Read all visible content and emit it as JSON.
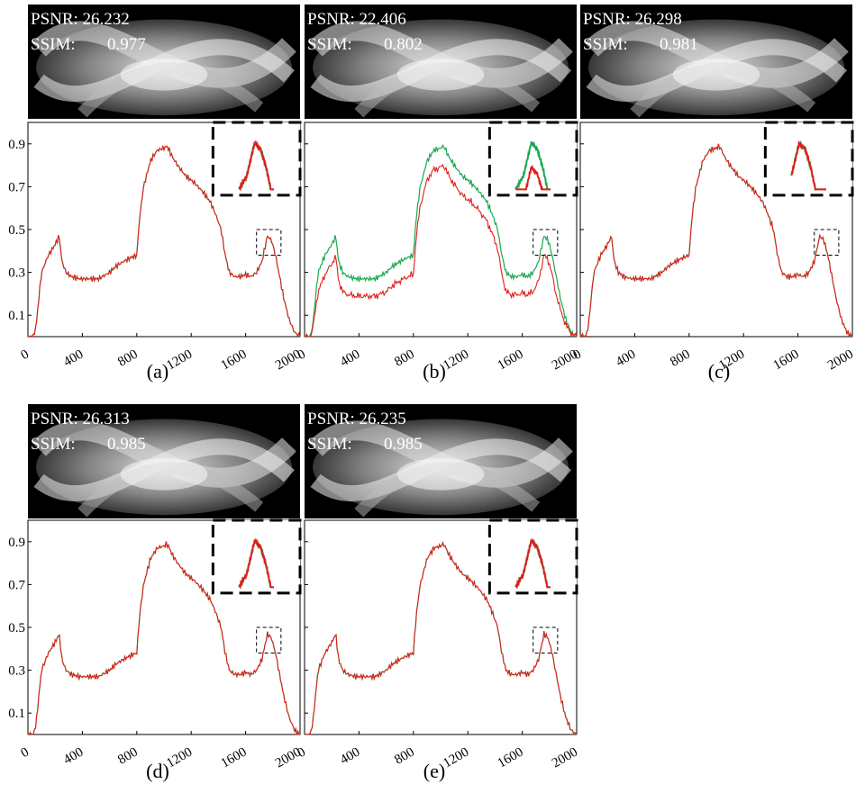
{
  "chart_data": [
    {
      "type": "line",
      "caption": "(a)",
      "metrics": {
        "psnr_label": "PSNR:",
        "psnr": "26.232",
        "ssim_label": "SSIM:",
        "ssim": "0.977"
      },
      "x_ticks": [
        "0",
        "400",
        "800",
        "1200",
        "1600",
        "2000"
      ],
      "y_ticks": [
        "0.1",
        "0.3",
        "0.5",
        "0.7",
        "0.9"
      ],
      "xlim": [
        0,
        2000
      ],
      "ylim": [
        0,
        1.0
      ],
      "zoom_box": {
        "x": [
          1680,
          1860
        ],
        "y": [
          0.38,
          0.5
        ]
      },
      "green_scale": 1.0,
      "green_dip": 0.0,
      "series": [
        {
          "color": "#1aa84f"
        },
        {
          "color": "#e0201b"
        }
      ]
    },
    {
      "type": "line",
      "caption": "(b)",
      "metrics": {
        "psnr_label": "PSNR:",
        "psnr": "22.406",
        "ssim_label": "SSIM:",
        "ssim": "0.802"
      },
      "x_ticks": [
        "0",
        "400",
        "800",
        "1200",
        "1600",
        "2000"
      ],
      "y_ticks": [
        "0.1",
        "0.3",
        "0.5",
        "0.7",
        "0.9"
      ],
      "xlim": [
        0,
        2000
      ],
      "ylim": [
        0,
        1.0
      ],
      "zoom_box": {
        "x": [
          1680,
          1860
        ],
        "y": [
          0.38,
          0.5
        ]
      },
      "green_scale": 1.0,
      "green_dip": 0.09,
      "series": [
        {
          "color": "#1aa84f"
        },
        {
          "color": "#e0201b"
        }
      ]
    },
    {
      "type": "line",
      "caption": "(c)",
      "metrics": {
        "psnr_label": "PSNR:",
        "psnr": "26.298",
        "ssim_label": "SSIM:",
        "ssim": "0.981"
      },
      "x_ticks": [
        "0",
        "400",
        "800",
        "1200",
        "1600",
        "2000"
      ],
      "y_ticks": [
        "0.1",
        "0.3",
        "0.5",
        "0.7",
        "0.9"
      ],
      "xlim": [
        0,
        2000
      ],
      "ylim": [
        0,
        1.0
      ],
      "zoom_box": {
        "x": [
          1720,
          1900
        ],
        "y": [
          0.38,
          0.5
        ]
      },
      "green_scale": 1.0,
      "green_dip": 0.0,
      "series": [
        {
          "color": "#1aa84f"
        },
        {
          "color": "#e0201b"
        }
      ]
    },
    {
      "type": "line",
      "caption": "(d)",
      "metrics": {
        "psnr_label": "PSNR:",
        "psnr": "26.313",
        "ssim_label": "SSIM:",
        "ssim": "0.985"
      },
      "x_ticks": [
        "0",
        "400",
        "800",
        "1200",
        "1600",
        "2000"
      ],
      "y_ticks": [
        "0.1",
        "0.3",
        "0.5",
        "0.7",
        "0.9"
      ],
      "xlim": [
        0,
        2000
      ],
      "ylim": [
        0,
        1.0
      ],
      "zoom_box": {
        "x": [
          1680,
          1860
        ],
        "y": [
          0.38,
          0.5
        ]
      },
      "green_scale": 1.0,
      "green_dip": 0.0,
      "series": [
        {
          "color": "#1aa84f"
        },
        {
          "color": "#e0201b"
        }
      ]
    },
    {
      "type": "line",
      "caption": "(e)",
      "metrics": {
        "psnr_label": "PSNR:",
        "psnr": "26.235",
        "ssim_label": "SSIM:",
        "ssim": "0.985"
      },
      "x_ticks": [
        "0",
        "400",
        "800",
        "1200",
        "1600",
        "2000"
      ],
      "y_ticks": [
        "0.1",
        "0.3",
        "0.5",
        "0.7",
        "0.9"
      ],
      "xlim": [
        0,
        2000
      ],
      "ylim": [
        0,
        1.0
      ],
      "zoom_box": {
        "x": [
          1680,
          1860
        ],
        "y": [
          0.38,
          0.5
        ]
      },
      "green_scale": 1.0,
      "green_dip": 0.0,
      "series": [
        {
          "color": "#1aa84f"
        },
        {
          "color": "#e0201b"
        }
      ]
    }
  ],
  "profile_x": [
    0,
    40,
    60,
    80,
    100,
    150,
    200,
    230,
    250,
    280,
    320,
    380,
    450,
    520,
    600,
    650,
    700,
    760,
    800,
    820,
    850,
    900,
    950,
    1000,
    1020,
    1040,
    1060,
    1100,
    1160,
    1220,
    1280,
    1340,
    1380,
    1420,
    1450,
    1480,
    1520,
    1560,
    1600,
    1640,
    1680,
    1720,
    1760,
    1790,
    1820,
    1850,
    1880,
    1920,
    1960,
    2000
  ],
  "profile_y": [
    0.0,
    0.0,
    0.05,
    0.18,
    0.3,
    0.38,
    0.43,
    0.47,
    0.35,
    0.3,
    0.28,
    0.27,
    0.27,
    0.27,
    0.3,
    0.33,
    0.35,
    0.37,
    0.38,
    0.55,
    0.7,
    0.82,
    0.87,
    0.88,
    0.89,
    0.87,
    0.84,
    0.8,
    0.75,
    0.72,
    0.68,
    0.63,
    0.57,
    0.5,
    0.38,
    0.3,
    0.28,
    0.28,
    0.29,
    0.28,
    0.3,
    0.35,
    0.47,
    0.45,
    0.38,
    0.28,
    0.18,
    0.08,
    0.02,
    0.0
  ],
  "colors": {
    "green": "#1aa84f",
    "red": "#e0201b",
    "image_bg": "#000000"
  }
}
